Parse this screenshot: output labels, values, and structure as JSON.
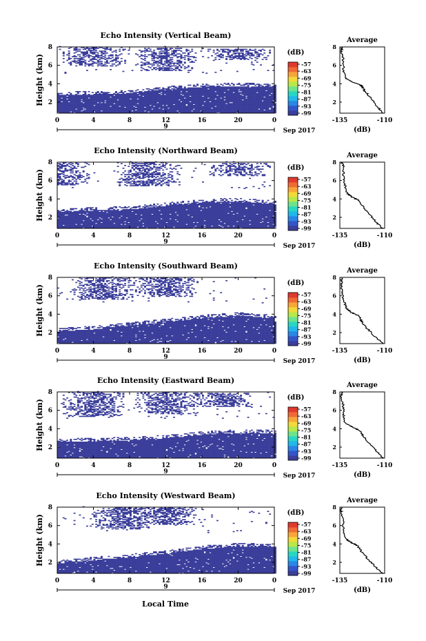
{
  "figure": {
    "xlabel": "Local Time",
    "date_label": "Sep 2017",
    "day_label": "9",
    "colorbar_unit": "(dB)",
    "average_title": "Average",
    "average_xlabel": "(dB)"
  },
  "colorbar_colors": [
    "#3b3e9a",
    "#3355c8",
    "#2b86e6",
    "#20b8e8",
    "#2ad6c2",
    "#6ee38c",
    "#b8e84a",
    "#f2d93a",
    "#f7a63a",
    "#f06a35",
    "#e03a2e"
  ],
  "chart_data": [
    {
      "type": "heatmap",
      "title": "Echo Intensity (Vertical Beam)",
      "ylabel": "Height (km)",
      "xlim": [
        0,
        24
      ],
      "ylim": [
        0.8,
        8
      ],
      "x_ticks": [
        "0",
        "4",
        "8",
        "12",
        "16",
        "20",
        "0"
      ],
      "y_ticks": [
        "2",
        "4",
        "6",
        "8"
      ],
      "colorbar_ticks": [
        "-57",
        "-63",
        "-69",
        "-75",
        "-81",
        "-87",
        "-93",
        "-99"
      ],
      "lower_layer_top_km": [
        [
          0,
          2.8
        ],
        [
          4,
          2.9
        ],
        [
          8,
          3.0
        ],
        [
          12,
          3.4
        ],
        [
          16,
          3.7
        ],
        [
          20,
          3.8
        ],
        [
          24,
          3.7
        ]
      ],
      "upper_layer_km": [
        [
          4,
          5.8,
          7.9
        ],
        [
          12,
          5.3,
          7.8
        ],
        [
          20,
          6.5,
          7.7
        ]
      ],
      "average_profile": {
        "xlim": [
          -135,
          -110
        ],
        "x_ticks": [
          "-135",
          "-110"
        ],
        "y_ticks": [
          "2",
          "4",
          "6",
          "8"
        ],
        "height_km": [
          0.8,
          1.5,
          2.5,
          3.2,
          3.8,
          4.2,
          4.6,
          5.5,
          6.5,
          7.5,
          8.0
        ],
        "db": [
          -111,
          -114,
          -118,
          -121,
          -123,
          -128,
          -132,
          -133,
          -133,
          -134,
          -134
        ]
      }
    },
    {
      "type": "heatmap",
      "title": "Echo Intensity (Northward Beam)",
      "ylabel": "Height (km)",
      "xlim": [
        0,
        24
      ],
      "ylim": [
        0.8,
        8
      ],
      "x_ticks": [
        "0",
        "4",
        "8",
        "12",
        "16",
        "20",
        "0"
      ],
      "y_ticks": [
        "2",
        "4",
        "6",
        "8"
      ],
      "colorbar_ticks": [
        "-57",
        "-63",
        "-69",
        "-75",
        "-81",
        "-87",
        "-93",
        "-99"
      ],
      "lower_layer_top_km": [
        [
          0,
          2.6
        ],
        [
          4,
          2.8
        ],
        [
          8,
          2.9
        ],
        [
          12,
          3.3
        ],
        [
          16,
          3.7
        ],
        [
          20,
          3.8
        ],
        [
          24,
          3.5
        ]
      ],
      "upper_layer_km": [
        [
          0,
          5.4,
          7.9
        ],
        [
          10,
          5.3,
          7.9
        ],
        [
          20,
          6.4,
          7.8
        ]
      ],
      "average_profile": {
        "xlim": [
          -135,
          -110
        ],
        "x_ticks": [
          "-135",
          "-110"
        ],
        "y_ticks": [
          "2",
          "4",
          "6",
          "8"
        ],
        "height_km": [
          0.8,
          1.5,
          2.5,
          3.2,
          3.8,
          4.2,
          4.6,
          5.5,
          6.5,
          7.5,
          8.0
        ],
        "db": [
          -111,
          -115,
          -119,
          -122,
          -124,
          -128,
          -131,
          -132,
          -133,
          -133,
          -134
        ]
      }
    },
    {
      "type": "heatmap",
      "title": "Echo Intensity (Southward Beam)",
      "ylabel": "Height (km)",
      "xlim": [
        0,
        24
      ],
      "ylim": [
        0.8,
        8
      ],
      "x_ticks": [
        "0",
        "4",
        "8",
        "12",
        "16",
        "20",
        "0"
      ],
      "y_ticks": [
        "2",
        "4",
        "6",
        "8"
      ],
      "colorbar_ticks": [
        "-57",
        "-63",
        "-69",
        "-75",
        "-81",
        "-87",
        "-93",
        "-99"
      ],
      "lower_layer_top_km": [
        [
          0,
          2.2
        ],
        [
          4,
          2.4
        ],
        [
          8,
          2.8
        ],
        [
          12,
          3.2
        ],
        [
          16,
          3.6
        ],
        [
          20,
          3.9
        ],
        [
          24,
          3.6
        ]
      ],
      "upper_layer_km": [
        [
          5,
          5.5,
          7.9
        ],
        [
          12,
          5.8,
          7.9
        ]
      ],
      "average_profile": {
        "xlim": [
          -135,
          -110
        ],
        "x_ticks": [
          "-135",
          "-110"
        ],
        "y_ticks": [
          "2",
          "4",
          "6",
          "8"
        ],
        "height_km": [
          0.8,
          1.5,
          2.5,
          3.2,
          3.8,
          4.2,
          4.6,
          5.5,
          6.5,
          7.5,
          8.0
        ],
        "db": [
          -111,
          -115,
          -120,
          -123,
          -124,
          -129,
          -131,
          -133,
          -134,
          -134,
          -134
        ]
      }
    },
    {
      "type": "heatmap",
      "title": "Echo Intensity (Eastward Beam)",
      "ylabel": "Height (km)",
      "xlim": [
        0,
        24
      ],
      "ylim": [
        0.8,
        8
      ],
      "x_ticks": [
        "0",
        "4",
        "8",
        "12",
        "16",
        "20",
        "0"
      ],
      "y_ticks": [
        "2",
        "4",
        "6",
        "8"
      ],
      "colorbar_ticks": [
        "-57",
        "-63",
        "-69",
        "-75",
        "-81",
        "-87",
        "-93",
        "-99"
      ],
      "lower_layer_top_km": [
        [
          0,
          2.6
        ],
        [
          4,
          2.7
        ],
        [
          8,
          2.8
        ],
        [
          12,
          3.0
        ],
        [
          16,
          3.4
        ],
        [
          20,
          3.6
        ],
        [
          24,
          3.6
        ]
      ],
      "upper_layer_km": [
        [
          4,
          5.2,
          7.9
        ],
        [
          12,
          5.5,
          7.9
        ],
        [
          18,
          6.3,
          7.8
        ]
      ],
      "average_profile": {
        "xlim": [
          -135,
          -110
        ],
        "x_ticks": [
          "-135",
          "-110"
        ],
        "y_ticks": [
          "2",
          "4",
          "6",
          "8"
        ],
        "height_km": [
          0.8,
          1.5,
          2.5,
          3.2,
          3.8,
          4.2,
          4.6,
          5.5,
          6.5,
          7.5,
          8.0
        ],
        "db": [
          -111,
          -114,
          -119,
          -122,
          -124,
          -128,
          -132,
          -133,
          -133,
          -134,
          -134
        ]
      }
    },
    {
      "type": "heatmap",
      "title": "Echo Intensity (Westward Beam)",
      "ylabel": "Height (km)",
      "xlim": [
        0,
        24
      ],
      "ylim": [
        0.8,
        8
      ],
      "x_ticks": [
        "0",
        "4",
        "8",
        "12",
        "16",
        "20",
        "0"
      ],
      "y_ticks": [
        "2",
        "4",
        "6",
        "8"
      ],
      "colorbar_ticks": [
        "-57",
        "-63",
        "-69",
        "-75",
        "-81",
        "-87",
        "-93",
        "-99"
      ],
      "lower_layer_top_km": [
        [
          0,
          1.9
        ],
        [
          4,
          2.3
        ],
        [
          8,
          2.6
        ],
        [
          12,
          3.0
        ],
        [
          16,
          3.5
        ],
        [
          20,
          3.8
        ],
        [
          24,
          3.7
        ]
      ],
      "upper_layer_km": [
        [
          7,
          5.5,
          7.9
        ],
        [
          12,
          6.0,
          7.9
        ]
      ],
      "average_profile": {
        "xlim": [
          -135,
          -110
        ],
        "x_ticks": [
          "-135",
          "-110"
        ],
        "y_ticks": [
          "2",
          "4",
          "6",
          "8"
        ],
        "height_km": [
          0.8,
          1.5,
          2.5,
          3.2,
          3.8,
          4.2,
          4.6,
          5.5,
          6.5,
          7.5,
          8.0
        ],
        "db": [
          -111,
          -115,
          -120,
          -123,
          -125,
          -129,
          -132,
          -133,
          -133,
          -134,
          -134
        ]
      }
    }
  ]
}
